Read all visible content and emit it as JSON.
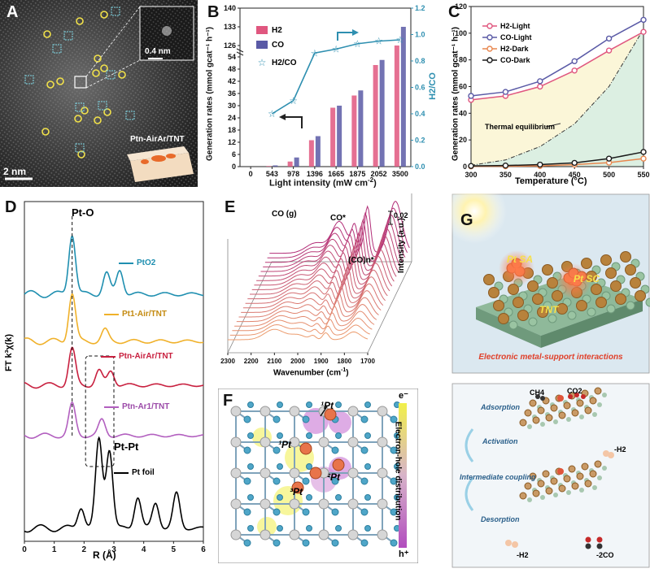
{
  "panels": {
    "a": {
      "label": "A",
      "scale_bar": "2 nm",
      "inset_scale": "0.4 nm",
      "sample_label": "Ptn-AirAr/TNT"
    },
    "b": {
      "label": "B",
      "xlabel": "Light intensity (mW cm",
      "xlabel_sup": "-2",
      "ylabel": "Generation rates (mmol gcat⁻¹ h⁻¹)",
      "y2label": "H2/CO",
      "legend": [
        "H2",
        "CO",
        "H2/CO"
      ]
    },
    "c": {
      "label": "C",
      "xlabel": "Temperature (°C)",
      "ylabel": "Generation rates (mmol gcat⁻¹ h⁻¹)",
      "legend": [
        "H2-Light",
        "CO-Light",
        "H2-Dark",
        "CO-Dark"
      ],
      "annotation": "Thermal equilibrium"
    },
    "d": {
      "label": "D",
      "xlabel": "R (Å)",
      "ylabel": "FT k³χ(k)",
      "peak1": "Pt-O",
      "peak2": "Pt-Pt",
      "legend": [
        "PtO2",
        "Pt1-Air/TNT",
        "Ptn-AirAr/TNT",
        "Ptn-Ar1/TNT",
        "Pt foil"
      ]
    },
    "e": {
      "label": "E",
      "xlabel": "Wavenumber (cm",
      "xlabel_sup": "-1",
      "ylabel": "Intensity (a.u.)",
      "scale": "0.02",
      "peaks": [
        "CO (g)",
        "CO*",
        "(CO)n*"
      ],
      "xticks": [
        "2300",
        "2200",
        "2100",
        "2000",
        "1900",
        "1800",
        "1700"
      ]
    },
    "f": {
      "label": "F",
      "colorbar_top": "e⁻",
      "colorbar_bottom": "h⁺",
      "colorbar_label": "Electron-hole distribution",
      "site_labels": [
        "¹Pt",
        "¹Pt",
        "²Pt",
        "³Pt"
      ]
    },
    "g": {
      "label": "G",
      "sites": [
        "Pt SA",
        "Pt SC",
        "TNT"
      ],
      "caption": "Electronic metal-support interactions",
      "steps": [
        "Adsorption",
        "Activation",
        "Intermediate coupling",
        "Desorption"
      ],
      "molecules": [
        "CH4",
        "CO2",
        "-H2",
        "-H2",
        "-2CO"
      ]
    }
  },
  "colors": {
    "h2": "#e0577f",
    "co": "#5a5aa6",
    "ratio": "#2e8fb0",
    "h2_dark": "#e8874f",
    "co_dark": "#1a1a1a",
    "pto2": "#1f8fb0",
    "pt1": "#f0b12a",
    "ptn_airar": "#c8203f",
    "ptn_ar": "#b25fbf",
    "ptfoil": "#000000"
  },
  "chart_data": [
    {
      "panel": "B",
      "type": "bar",
      "categories": [
        "0",
        "543",
        "978",
        "1396",
        "1665",
        "1875",
        "2052",
        "3500"
      ],
      "series": [
        {
          "name": "H2",
          "values": [
            0,
            0.3,
            2.5,
            13,
            29,
            35,
            50,
            126
          ]
        },
        {
          "name": "CO",
          "values": [
            0,
            0.6,
            4.5,
            15,
            30,
            37.5,
            52.5,
            133
          ]
        },
        {
          "name": "H2/CO",
          "axis": "right",
          "values": [
            null,
            0.4,
            0.5,
            0.86,
            0.89,
            0.93,
            0.95,
            0.96
          ]
        }
      ],
      "xlabel": "Light intensity (mW cm-2)",
      "ylabel": "Generation rates (mmol gcat-1 h-1)",
      "y2label": "H2/CO",
      "ylim_lower": [
        0,
        54
      ],
      "ylim_upper": [
        126,
        140
      ],
      "yticks": [
        0,
        6,
        12,
        18,
        24,
        30,
        36,
        42,
        48,
        54,
        126,
        133,
        140
      ],
      "y2lim": [
        0,
        1.2
      ],
      "y2ticks": [
        0,
        0.2,
        0.4,
        0.6,
        0.8,
        1.0,
        1.2
      ]
    },
    {
      "panel": "C",
      "type": "line",
      "x": [
        300,
        350,
        400,
        450,
        500,
        550
      ],
      "series": [
        {
          "name": "H2-Light",
          "values": [
            50,
            53,
            60,
            72,
            87,
            101
          ]
        },
        {
          "name": "CO-Light",
          "values": [
            53,
            56,
            64,
            79,
            96,
            110
          ]
        },
        {
          "name": "H2-Dark",
          "values": [
            0.2,
            0.3,
            0.5,
            1.5,
            3,
            6
          ]
        },
        {
          "name": "CO-Dark",
          "values": [
            0.5,
            0.8,
            1.5,
            2.8,
            6,
            11
          ]
        },
        {
          "name": "Thermal equilibrium",
          "values": [
            1,
            5,
            15,
            32,
            60,
            103
          ]
        }
      ],
      "xlabel": "Temperature (°C)",
      "ylabel": "Generation rates (mmol gcat-1 h-1)",
      "xlim": [
        300,
        550
      ],
      "ylim": [
        0,
        120
      ],
      "yticks": [
        0,
        20,
        40,
        60,
        80,
        100,
        120
      ]
    },
    {
      "panel": "D",
      "type": "line",
      "xlabel": "R (Å)",
      "ylabel": "FT k3χ(k)",
      "xlim": [
        0,
        6
      ],
      "xticks": [
        0,
        1,
        2,
        3,
        4,
        5,
        6
      ],
      "series": [
        {
          "name": "PtO2",
          "peaks": [
            [
              1.6,
              1.0
            ],
            [
              2.75,
              0.35
            ],
            [
              3.2,
              0.4
            ]
          ]
        },
        {
          "name": "Pt1-Air/TNT",
          "peaks": [
            [
              1.6,
              0.85
            ],
            [
              2.7,
              0.2
            ]
          ]
        },
        {
          "name": "Ptn-AirAr/TNT",
          "peaks": [
            [
              1.6,
              0.75
            ],
            [
              2.5,
              0.3
            ],
            [
              2.9,
              0.3
            ]
          ]
        },
        {
          "name": "Ptn-Ar1/TNT",
          "peaks": [
            [
              1.6,
              0.7
            ],
            [
              2.6,
              0.35
            ]
          ]
        },
        {
          "name": "Pt foil",
          "peaks": [
            [
              1.9,
              0.35
            ],
            [
              2.5,
              1.4
            ],
            [
              2.85,
              1.25
            ],
            [
              3.8,
              0.5
            ],
            [
              4.4,
              0.4
            ],
            [
              5.1,
              0.55
            ]
          ]
        }
      ]
    },
    {
      "panel": "E",
      "type": "line",
      "xlabel": "Wavenumber (cm-1)",
      "ylabel": "Intensity (a.u.)",
      "xlim": [
        2300,
        1700
      ],
      "curves": 20,
      "peaks_cm": [
        2000,
        1935,
        1880,
        1760
      ]
    }
  ]
}
